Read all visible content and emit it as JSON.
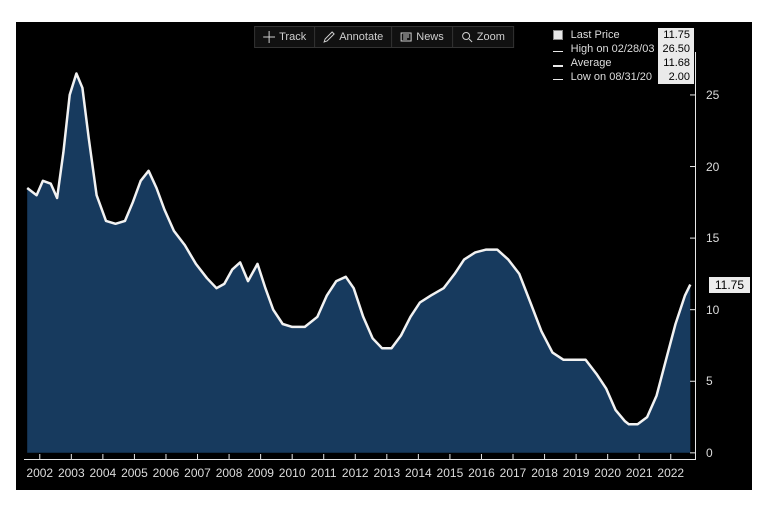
{
  "toolbar": {
    "track": {
      "label": "Track"
    },
    "annotate": {
      "label": "Annotate"
    },
    "news": {
      "label": "News"
    },
    "zoom": {
      "label": "Zoom"
    }
  },
  "legend": {
    "rows": [
      {
        "swatch": "#e8e8e8",
        "swatch_type": "box",
        "label": "Last Price",
        "value": "11.75"
      },
      {
        "swatch": "#e8e8e8",
        "swatch_type": "tick",
        "label": "High on 02/28/03",
        "value": "26.50"
      },
      {
        "swatch": "#e8e8e8",
        "swatch_type": "bar",
        "label": "Average",
        "value": "11.68"
      },
      {
        "swatch": "#e8e8e8",
        "swatch_type": "tick",
        "label": "Low on 08/31/20",
        "value": "2.00"
      }
    ]
  },
  "chart": {
    "type": "area",
    "background_color": "#000000",
    "line_color": "#f2f2f2",
    "line_width": 2.5,
    "fill_color": "#173a5e",
    "fill_opacity": 1.0,
    "axis_color": "#e8e8e8",
    "tick_label_color": "#dcdcdc",
    "tick_fontsize": 12,
    "label_fontsize": 12,
    "x": {
      "lim": [
        2001.5,
        2022.8
      ],
      "ticks": [
        2002,
        2003,
        2004,
        2005,
        2006,
        2007,
        2008,
        2009,
        2010,
        2011,
        2012,
        2013,
        2014,
        2015,
        2016,
        2017,
        2018,
        2019,
        2020,
        2021,
        2022
      ],
      "tick_labels": [
        "2002",
        "2003",
        "2004",
        "2005",
        "2006",
        "2007",
        "2008",
        "2009",
        "2010",
        "2011",
        "2012",
        "2013",
        "2014",
        "2015",
        "2016",
        "2017",
        "2018",
        "2019",
        "2020",
        "2021",
        "2022"
      ]
    },
    "y": {
      "lim": [
        -0.5,
        28
      ],
      "ticks": [
        0,
        5,
        10,
        15,
        20,
        25
      ],
      "tick_labels": [
        "0",
        "5",
        "10",
        "15",
        "20",
        "25"
      ]
    },
    "last_label": {
      "value": "11.75",
      "y": 11.75,
      "bg": "#ececec",
      "fg": "#000000"
    },
    "series": [
      {
        "name": "price",
        "points": [
          [
            2001.6,
            18.5
          ],
          [
            2001.9,
            18.0
          ],
          [
            2002.1,
            19.0
          ],
          [
            2002.35,
            18.8
          ],
          [
            2002.55,
            17.8
          ],
          [
            2002.75,
            21.0
          ],
          [
            2002.95,
            25.0
          ],
          [
            2003.16,
            26.5
          ],
          [
            2003.35,
            25.5
          ],
          [
            2003.55,
            22.0
          ],
          [
            2003.8,
            18.0
          ],
          [
            2004.1,
            16.2
          ],
          [
            2004.4,
            16.0
          ],
          [
            2004.7,
            16.2
          ],
          [
            2004.95,
            17.5
          ],
          [
            2005.2,
            19.0
          ],
          [
            2005.45,
            19.7
          ],
          [
            2005.7,
            18.5
          ],
          [
            2005.95,
            17.0
          ],
          [
            2006.25,
            15.5
          ],
          [
            2006.6,
            14.5
          ],
          [
            2006.95,
            13.2
          ],
          [
            2007.3,
            12.2
          ],
          [
            2007.6,
            11.5
          ],
          [
            2007.85,
            11.8
          ],
          [
            2008.1,
            12.8
          ],
          [
            2008.35,
            13.3
          ],
          [
            2008.6,
            12.0
          ],
          [
            2008.9,
            13.2
          ],
          [
            2009.15,
            11.5
          ],
          [
            2009.4,
            10.0
          ],
          [
            2009.7,
            9.0
          ],
          [
            2010.0,
            8.8
          ],
          [
            2010.4,
            8.8
          ],
          [
            2010.8,
            9.5
          ],
          [
            2011.1,
            11.0
          ],
          [
            2011.4,
            12.0
          ],
          [
            2011.7,
            12.3
          ],
          [
            2011.95,
            11.5
          ],
          [
            2012.25,
            9.5
          ],
          [
            2012.55,
            8.0
          ],
          [
            2012.85,
            7.3
          ],
          [
            2013.15,
            7.3
          ],
          [
            2013.45,
            8.2
          ],
          [
            2013.75,
            9.5
          ],
          [
            2014.05,
            10.5
          ],
          [
            2014.4,
            11.0
          ],
          [
            2014.8,
            11.5
          ],
          [
            2015.15,
            12.5
          ],
          [
            2015.45,
            13.5
          ],
          [
            2015.8,
            14.0
          ],
          [
            2016.15,
            14.2
          ],
          [
            2016.5,
            14.2
          ],
          [
            2016.85,
            13.5
          ],
          [
            2017.2,
            12.5
          ],
          [
            2017.55,
            10.5
          ],
          [
            2017.9,
            8.5
          ],
          [
            2018.25,
            7.0
          ],
          [
            2018.6,
            6.5
          ],
          [
            2018.95,
            6.5
          ],
          [
            2019.3,
            6.5
          ],
          [
            2019.65,
            5.5
          ],
          [
            2019.95,
            4.5
          ],
          [
            2020.25,
            3.0
          ],
          [
            2020.55,
            2.2
          ],
          [
            2020.67,
            2.0
          ],
          [
            2020.95,
            2.0
          ],
          [
            2021.25,
            2.5
          ],
          [
            2021.55,
            4.0
          ],
          [
            2021.85,
            6.5
          ],
          [
            2022.15,
            9.0
          ],
          [
            2022.45,
            11.0
          ],
          [
            2022.62,
            11.75
          ]
        ]
      }
    ]
  }
}
